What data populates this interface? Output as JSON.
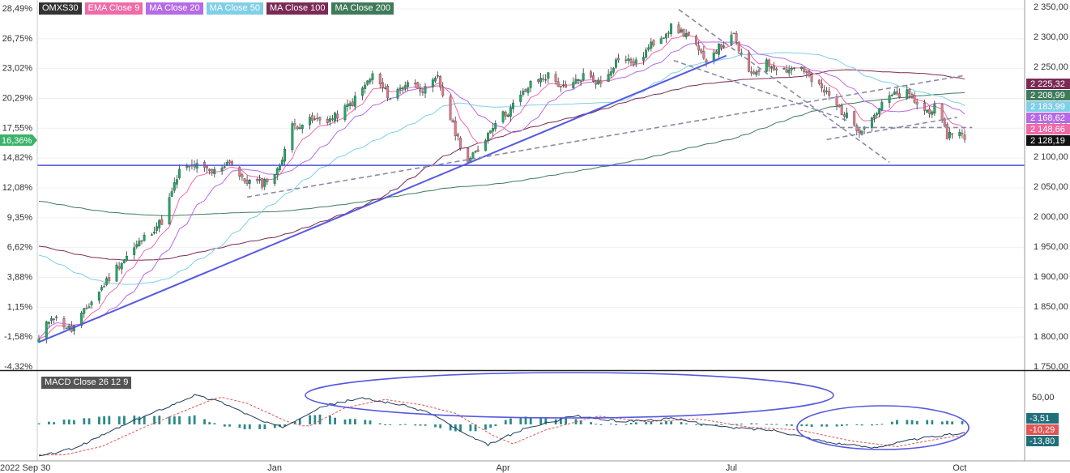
{
  "legend": {
    "symbol": "OMXS30",
    "items": [
      {
        "label": "EMA Close 9",
        "color": "#f06aa8"
      },
      {
        "label": "MA Close 20",
        "color": "#b56be6"
      },
      {
        "label": "MA Close 50",
        "color": "#7fcfe6"
      },
      {
        "label": "MA Close 100",
        "color": "#7a2a54"
      },
      {
        "label": "MA Close 200",
        "color": "#3f7a5a"
      }
    ]
  },
  "macd_legend": "MACD Close 26 12 9",
  "current_pct": "16,36%",
  "chart_data": [
    {
      "type": "candlestick",
      "x_range": [
        "2022-09-30",
        "2023-10-15"
      ],
      "y_right_range": [
        1750,
        2350
      ],
      "y_right_ticks": [
        "2 350,00",
        "2 300,00",
        "2 250,00",
        "2 200,00",
        "2 150,00",
        "2 100,00",
        "2 050,00",
        "2 000,00",
        "1 950,00",
        "1 900,00",
        "1 850,00",
        "1 800,00",
        "1 750,00"
      ],
      "y_left_ticks": [
        "28,49%",
        "26,75%",
        "23,02%",
        "20,29%",
        "17,55%",
        "14,82%",
        "12,08%",
        "9,35%",
        "6,62%",
        "3,88%",
        "1,15%",
        "-1,58%",
        "-4,32%"
      ],
      "x_ticks": [
        "2022 Sep 30",
        "Jan",
        "Apr",
        "Jul",
        "Oct"
      ],
      "ma_price_labels": [
        {
          "value": "2 225,32",
          "color": "#7a2a54"
        },
        {
          "value": "2 208,99",
          "color": "#3f7a5a"
        },
        {
          "value": "2 183,99",
          "color": "#7fcfe6"
        },
        {
          "value": "2 168,62",
          "color": "#b56be6"
        },
        {
          "value": "2 148,66",
          "color": "#f06aa8"
        },
        {
          "value": "2 128,19",
          "color": "#111111"
        }
      ],
      "close_anchors": [
        [
          "2022-09-30",
          1793
        ],
        [
          "2022-10-05",
          1835
        ],
        [
          "2022-10-13",
          1810
        ],
        [
          "2022-10-20",
          1852
        ],
        [
          "2022-10-31",
          1915
        ],
        [
          "2022-11-10",
          1960
        ],
        [
          "2022-11-18",
          1992
        ],
        [
          "2022-11-25",
          2075
        ],
        [
          "2022-12-01",
          2085
        ],
        [
          "2022-12-08",
          2072
        ],
        [
          "2022-12-15",
          2093
        ],
        [
          "2022-12-20",
          2060
        ],
        [
          "2022-12-28",
          2055
        ],
        [
          "2023-01-03",
          2075
        ],
        [
          "2023-01-09",
          2150
        ],
        [
          "2023-01-17",
          2160
        ],
        [
          "2023-01-25",
          2162
        ],
        [
          "2023-02-02",
          2190
        ],
        [
          "2023-02-10",
          2235
        ],
        [
          "2023-02-17",
          2198
        ],
        [
          "2023-02-24",
          2225
        ],
        [
          "2023-03-03",
          2210
        ],
        [
          "2023-03-08",
          2230
        ],
        [
          "2023-03-14",
          2150
        ],
        [
          "2023-03-20",
          2090
        ],
        [
          "2023-03-24",
          2110
        ],
        [
          "2023-03-31",
          2160
        ],
        [
          "2023-04-05",
          2175
        ],
        [
          "2023-04-14",
          2220
        ],
        [
          "2023-04-21",
          2235
        ],
        [
          "2023-04-28",
          2210
        ],
        [
          "2023-05-05",
          2235
        ],
        [
          "2023-05-12",
          2222
        ],
        [
          "2023-05-19",
          2265
        ],
        [
          "2023-05-26",
          2255
        ],
        [
          "2023-06-02",
          2290
        ],
        [
          "2023-06-09",
          2315
        ],
        [
          "2023-06-16",
          2302
        ],
        [
          "2023-06-22",
          2260
        ],
        [
          "2023-06-29",
          2285
        ],
        [
          "2023-07-04",
          2300
        ],
        [
          "2023-07-10",
          2235
        ],
        [
          "2023-07-17",
          2255
        ],
        [
          "2023-07-24",
          2245
        ],
        [
          "2023-07-31",
          2250
        ],
        [
          "2023-08-04",
          2225
        ],
        [
          "2023-08-10",
          2205
        ],
        [
          "2023-08-17",
          2170
        ],
        [
          "2023-08-23",
          2145
        ],
        [
          "2023-08-28",
          2165
        ],
        [
          "2023-09-04",
          2200
        ],
        [
          "2023-09-11",
          2205
        ],
        [
          "2023-09-18",
          2175
        ],
        [
          "2023-09-22",
          2180
        ],
        [
          "2023-09-27",
          2135
        ],
        [
          "2023-10-02",
          2145
        ],
        [
          "2023-10-04",
          2128
        ]
      ],
      "horizontal_line": 2085,
      "trend_lines": [
        {
          "style": "solid",
          "from": [
            "2022-09-30",
            1790
          ],
          "to": [
            "2023-07-01",
            2268
          ]
        },
        {
          "style": "dashed",
          "from": [
            "2022-12-22",
            2032
          ],
          "to": [
            "2023-10-04",
            2235
          ]
        },
        {
          "style": "dashed",
          "from": [
            "2023-06-12",
            2345
          ],
          "to": [
            "2023-09-04",
            2090
          ]
        },
        {
          "style": "dashed",
          "from": [
            "2023-06-10",
            2260
          ],
          "to": [
            "2023-08-18",
            2160
          ]
        },
        {
          "style": "dashed",
          "from": [
            "2023-08-12",
            2148
          ],
          "to": [
            "2023-10-07",
            2148
          ]
        },
        {
          "style": "dashed",
          "from": [
            "2023-08-10",
            2128
          ],
          "to": [
            "2023-10-01",
            2165
          ]
        }
      ]
    },
    {
      "type": "macd",
      "right_labels": [
        {
          "value": "50,00",
          "kind": "tick"
        },
        {
          "value": "-3,51",
          "color": "#1f6f7a"
        },
        {
          "value": "-10,29",
          "color": "#e05555"
        },
        {
          "value": "-13,80",
          "color": "#1f6f7a"
        }
      ],
      "y_range": [
        -60,
        75
      ],
      "macd_anchors": [
        [
          "2022-09-30",
          -55
        ],
        [
          "2022-10-15",
          -40
        ],
        [
          "2022-11-01",
          -5
        ],
        [
          "2022-11-20",
          30
        ],
        [
          "2022-12-01",
          50
        ],
        [
          "2022-12-12",
          38
        ],
        [
          "2022-12-28",
          5
        ],
        [
          "2023-01-05",
          -5
        ],
        [
          "2023-01-20",
          30
        ],
        [
          "2023-02-05",
          45
        ],
        [
          "2023-02-20",
          35
        ],
        [
          "2023-03-05",
          20
        ],
        [
          "2023-03-20",
          -20
        ],
        [
          "2023-03-28",
          -35
        ],
        [
          "2023-04-10",
          -10
        ],
        [
          "2023-05-01",
          15
        ],
        [
          "2023-05-20",
          5
        ],
        [
          "2023-06-10",
          10
        ],
        [
          "2023-06-30",
          -5
        ],
        [
          "2023-07-20",
          -10
        ],
        [
          "2023-08-10",
          -30
        ],
        [
          "2023-08-28",
          -40
        ],
        [
          "2023-09-15",
          -25
        ],
        [
          "2023-10-04",
          -14
        ]
      ],
      "signal_lag_days": 10
    }
  ]
}
